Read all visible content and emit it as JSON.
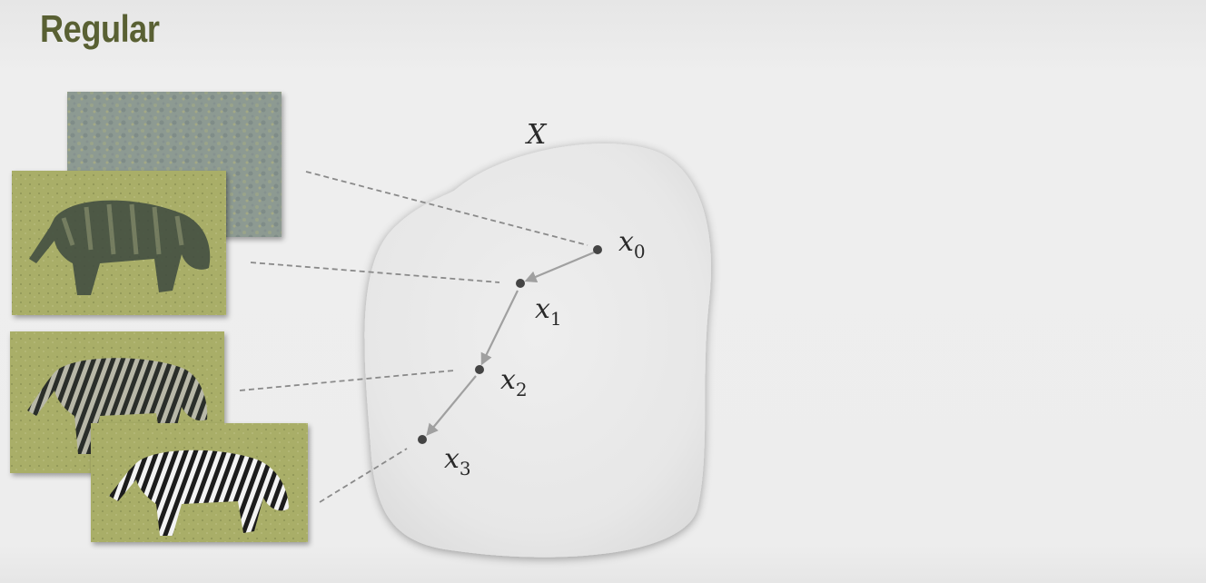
{
  "slide": {
    "title": "Regular"
  },
  "space": {
    "label": "X"
  },
  "points": [
    {
      "symbol": "x",
      "index": "0"
    },
    {
      "symbol": "x",
      "index": "1"
    },
    {
      "symbol": "x",
      "index": "2"
    },
    {
      "symbol": "x",
      "index": "3"
    }
  ],
  "images": [
    {
      "description": "noise",
      "content": "gray-green noise texture"
    },
    {
      "description": "blurry zebra",
      "content": "dark blurry zebra silhouette"
    },
    {
      "description": "partial zebra",
      "content": "zebra with noisy stripes"
    },
    {
      "description": "clean zebra",
      "content": "clean striped zebra grazing"
    }
  ],
  "colors": {
    "title": "#596033",
    "image_background": "#a8ae66",
    "dashed_line": "#8a8a8a",
    "arrow": "#a0a0a0",
    "point": "#444444"
  }
}
